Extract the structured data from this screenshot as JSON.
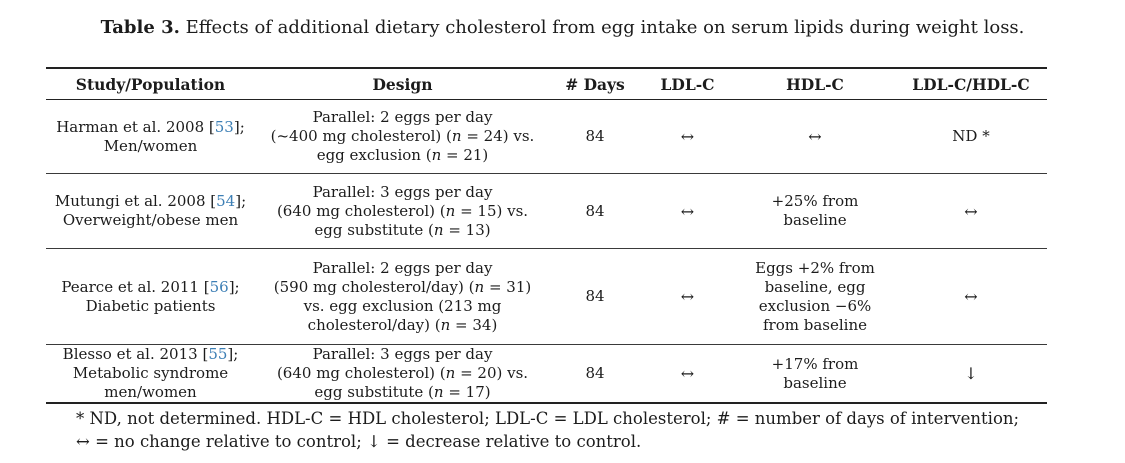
{
  "title": {
    "bold": "Table 3.",
    "text": " Effects of additional dietary cholesterol from egg intake on serum lipids during weight loss."
  },
  "colors": {
    "citation_link": "#3d7fb5",
    "text": "#1c1c1c",
    "rule": "#222222",
    "background": "#ffffff"
  },
  "table": {
    "headers": [
      "Study/Population",
      "Design",
      "# Days",
      "LDL-C",
      "HDL-C",
      "LDL-C/HDL-C"
    ],
    "rows": [
      {
        "study": "Harman et al. 2008 [[53]];\nMen/women",
        "design": "Parallel: 2 eggs per day\n(~400 mg cholesterol) (*n* = 24) vs.\negg exclusion (*n* = 21)",
        "days": "84",
        "ldl": "↔",
        "hdl": "↔",
        "ratio": "ND *"
      },
      {
        "study": "Mutungi et al. 2008 [[54]];\nOverweight/obese men",
        "design": "Parallel: 3 eggs per day\n(640 mg cholesterol) (*n* = 15) vs.\negg substitute (*n* = 13)",
        "days": "84",
        "ldl": "↔",
        "hdl": "+25% from baseline",
        "ratio": "↔"
      },
      {
        "study": "Pearce et al. 2011 [[56]];\nDiabetic patients",
        "design": "Parallel: 2 eggs per day\n(590 mg cholesterol/day) (*n* = 31)\nvs. egg exclusion (213 mg\ncholesterol/day) (*n* = 34)",
        "days": "84",
        "ldl": "↔",
        "hdl": "Eggs +2% from\nbaseline, egg\nexclusion −6%\nfrom baseline",
        "ratio": "↔"
      },
      {
        "study": "Blesso et al. 2013 [[55]];\nMetabolic syndrome\nmen/women",
        "design": "Parallel: 3 eggs per day\n(640 mg cholesterol) (*n* = 20) vs.\negg substitute (*n* = 17)",
        "days": "84",
        "ldl": "↔",
        "hdl": "+17% from baseline",
        "ratio": "↓"
      }
    ]
  },
  "footnote": "* ND, not determined. HDL-C = HDL cholesterol; LDL-C = LDL cholesterol; # = number of days of intervention;\n↔ = no change relative to control; ↓ = decrease relative to control."
}
